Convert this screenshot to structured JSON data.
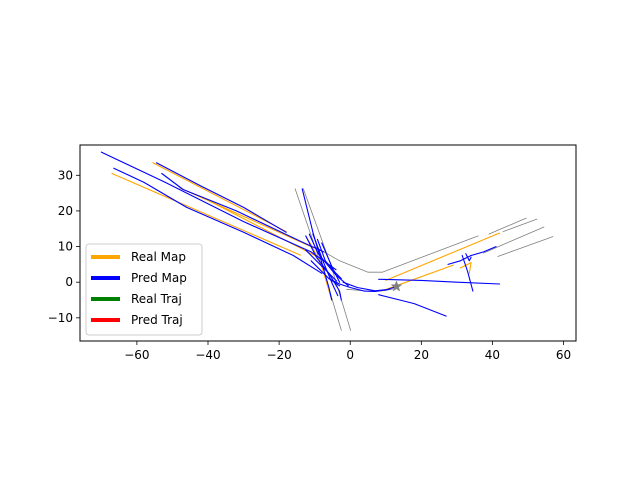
{
  "chart_data": {
    "type": "line",
    "title": "",
    "xlabel": "",
    "ylabel": "",
    "xlim": [
      -76,
      63.5
    ],
    "ylim": [
      -16.5,
      38.5
    ],
    "xticks": [
      -60,
      -40,
      -20,
      0,
      20,
      40,
      60
    ],
    "yticks": [
      -10,
      0,
      10,
      20,
      30
    ],
    "xtick_labels": [
      "−60",
      "−40",
      "−20",
      "0",
      "20",
      "40",
      "60"
    ],
    "ytick_labels": [
      "−10",
      "0",
      "10",
      "20",
      "30"
    ],
    "grid": false,
    "legend_position": "lower-left",
    "legend": [
      {
        "label": "Real Map",
        "color": "#ffa500"
      },
      {
        "label": "Pred Map",
        "color": "#0000ff"
      },
      {
        "label": "Real Traj",
        "color": "#008000"
      },
      {
        "label": "Pred Traj",
        "color": "#ff0000"
      }
    ],
    "boundary_color": "#808080",
    "ego_marker": {
      "x": 13,
      "y": -1.2,
      "shape": "star",
      "color": "#808080"
    },
    "series": [
      {
        "group": "boundary",
        "color": "#808080",
        "points": [
          [
            -15.5,
            26.2
          ],
          [
            -6.5,
            0
          ],
          [
            -2.5,
            -13.5
          ]
        ]
      },
      {
        "group": "boundary",
        "color": "#808080",
        "points": [
          [
            -13.2,
            26.2
          ],
          [
            -5.5,
            5
          ],
          [
            0.1,
            -13.5
          ]
        ]
      },
      {
        "group": "boundary",
        "color": "#808080",
        "points": [
          [
            -10,
            10
          ],
          [
            -3,
            6
          ],
          [
            5,
            2.8
          ],
          [
            9,
            2.8
          ],
          [
            36,
            13
          ]
        ]
      },
      {
        "group": "boundary",
        "color": "#808080",
        "points": [
          [
            -1,
            -2
          ],
          [
            5,
            -2.5
          ],
          [
            10,
            -2.3
          ],
          [
            13,
            -1.7
          ]
        ]
      },
      {
        "group": "boundary",
        "color": "#808080",
        "points": [
          [
            37.5,
            8.2
          ],
          [
            54.5,
            15.5
          ]
        ]
      },
      {
        "group": "boundary",
        "color": "#808080",
        "points": [
          [
            39,
            13.5
          ],
          [
            49.5,
            18
          ]
        ]
      },
      {
        "group": "boundary",
        "color": "#808080",
        "points": [
          [
            41.5,
            7.2
          ],
          [
            57,
            12.8
          ]
        ]
      },
      {
        "group": "boundary",
        "color": "#808080",
        "points": [
          [
            43,
            14.2
          ],
          [
            52.5,
            17.7
          ]
        ]
      },
      {
        "group": "real",
        "color": "#ffa500",
        "points": [
          [
            -67,
            30.5
          ],
          [
            -14,
            7.6
          ]
        ]
      },
      {
        "group": "real",
        "color": "#ffa500",
        "points": [
          [
            -55.5,
            33.5
          ],
          [
            -18,
            14.2
          ]
        ]
      },
      {
        "group": "real",
        "color": "#ffa500",
        "points": [
          [
            -48,
            26.5
          ],
          [
            -11,
            10
          ]
        ]
      },
      {
        "group": "real",
        "color": "#ffa500",
        "points": [
          [
            -40,
            23
          ],
          [
            -9,
            7
          ]
        ]
      },
      {
        "group": "real",
        "color": "#ffa500",
        "points": [
          [
            -12.5,
            12.8
          ],
          [
            -11,
            10.5
          ],
          [
            -8,
            4.5
          ],
          [
            -5.2,
            -5
          ]
        ]
      },
      {
        "group": "real",
        "color": "#ffa500",
        "points": [
          [
            10,
            0.5
          ],
          [
            42,
            13.8
          ]
        ]
      },
      {
        "group": "real",
        "color": "#ffa500",
        "points": [
          [
            9,
            -2.4
          ],
          [
            29,
            4.8
          ]
        ]
      },
      {
        "group": "real",
        "color": "#ffa500",
        "points": [
          [
            31,
            4
          ],
          [
            34,
            5.5
          ],
          [
            33.5,
            2.5
          ]
        ]
      },
      {
        "group": "pred",
        "color": "#0000ff",
        "points": [
          [
            -70,
            36.5
          ],
          [
            -52,
            28
          ],
          [
            -30,
            17
          ],
          [
            -11,
            8.5
          ],
          [
            -4,
            3.5
          ]
        ]
      },
      {
        "group": "pred",
        "color": "#0000ff",
        "points": [
          [
            -66.5,
            32
          ],
          [
            -58,
            28
          ],
          [
            -46,
            21
          ],
          [
            -30,
            14
          ],
          [
            -16,
            7.5
          ],
          [
            -8,
            2.5
          ]
        ]
      },
      {
        "group": "pred",
        "color": "#0000ff",
        "points": [
          [
            -53,
            30.5
          ],
          [
            -47,
            26
          ],
          [
            -32,
            20
          ],
          [
            -14,
            11.5
          ],
          [
            -7.5,
            8.5
          ]
        ]
      },
      {
        "group": "pred",
        "color": "#0000ff",
        "points": [
          [
            -54.5,
            33.5
          ],
          [
            -42,
            27
          ],
          [
            -30,
            21
          ],
          [
            -18,
            14
          ]
        ]
      },
      {
        "group": "pred",
        "color": "#0000ff",
        "points": [
          [
            -13.5,
            26.2
          ],
          [
            -10.5,
            14
          ],
          [
            -8,
            5.5
          ],
          [
            -6,
            -1.5
          ],
          [
            -5.2,
            -5
          ]
        ]
      },
      {
        "group": "pred",
        "color": "#0000ff",
        "points": [
          [
            -12.5,
            13
          ],
          [
            -9.5,
            7
          ],
          [
            -6,
            2.5
          ],
          [
            -3,
            -2.5
          ],
          [
            -2.5,
            -5
          ]
        ]
      },
      {
        "group": "pred",
        "color": "#0000ff",
        "points": [
          [
            -11.5,
            13.5
          ],
          [
            -9,
            8
          ],
          [
            -4,
            2
          ],
          [
            -0.5,
            -1
          ]
        ]
      },
      {
        "group": "pred",
        "color": "#0000ff",
        "points": [
          [
            -10.5,
            13.5
          ],
          [
            -7.5,
            5.5
          ],
          [
            -5,
            -0.5
          ],
          [
            -3.5,
            -3.8
          ]
        ]
      },
      {
        "group": "pred",
        "color": "#0000ff",
        "points": [
          [
            -9.2,
            12
          ],
          [
            -7,
            6
          ],
          [
            -4,
            2.5
          ],
          [
            -2.5,
            1
          ]
        ]
      },
      {
        "group": "pred",
        "color": "#0000ff",
        "points": [
          [
            -8,
            11
          ],
          [
            -5,
            4
          ],
          [
            -3,
            0
          ]
        ]
      },
      {
        "group": "pred",
        "color": "#0000ff",
        "points": [
          [
            -11,
            6
          ],
          [
            -6,
            1
          ],
          [
            -3,
            -1
          ]
        ]
      },
      {
        "group": "pred",
        "color": "#0000ff",
        "points": [
          [
            -12.5,
            9
          ],
          [
            -7,
            3.5
          ],
          [
            -3.8,
            0.3
          ]
        ]
      },
      {
        "group": "pred",
        "color": "#0000ff",
        "points": [
          [
            -6,
            1
          ],
          [
            -3,
            -0.5
          ],
          [
            0,
            -1.5
          ],
          [
            4,
            -2.5
          ],
          [
            7,
            -2.6
          ],
          [
            10,
            -2.2
          ],
          [
            13,
            -1.2
          ]
        ]
      },
      {
        "group": "pred",
        "color": "#0000ff",
        "points": [
          [
            -2,
            0
          ],
          [
            2,
            -1.5
          ],
          [
            7,
            -2.4
          ],
          [
            11,
            -2
          ]
        ]
      },
      {
        "group": "pred",
        "color": "#0000ff",
        "points": [
          [
            8,
            0.8
          ],
          [
            20,
            0.5
          ],
          [
            30,
            0
          ],
          [
            42,
            -0.5
          ]
        ]
      },
      {
        "group": "pred",
        "color": "#0000ff",
        "points": [
          [
            8,
            -3.5
          ],
          [
            18,
            -6
          ],
          [
            27,
            -9.5
          ]
        ]
      },
      {
        "group": "pred",
        "color": "#0000ff",
        "points": [
          [
            27.5,
            5
          ],
          [
            31,
            6
          ],
          [
            34,
            7.5
          ]
        ]
      },
      {
        "group": "pred",
        "color": "#0000ff",
        "points": [
          [
            34,
            7.5
          ],
          [
            37.5,
            8.5
          ],
          [
            41,
            10
          ]
        ]
      },
      {
        "group": "pred",
        "color": "#0000ff",
        "points": [
          [
            31.5,
            7.5
          ],
          [
            33,
            3
          ],
          [
            34.5,
            -2.5
          ]
        ]
      },
      {
        "group": "pred",
        "color": "#0000ff",
        "points": [
          [
            32.5,
            8
          ],
          [
            33.5,
            6
          ],
          [
            34,
            7
          ]
        ]
      }
    ]
  }
}
